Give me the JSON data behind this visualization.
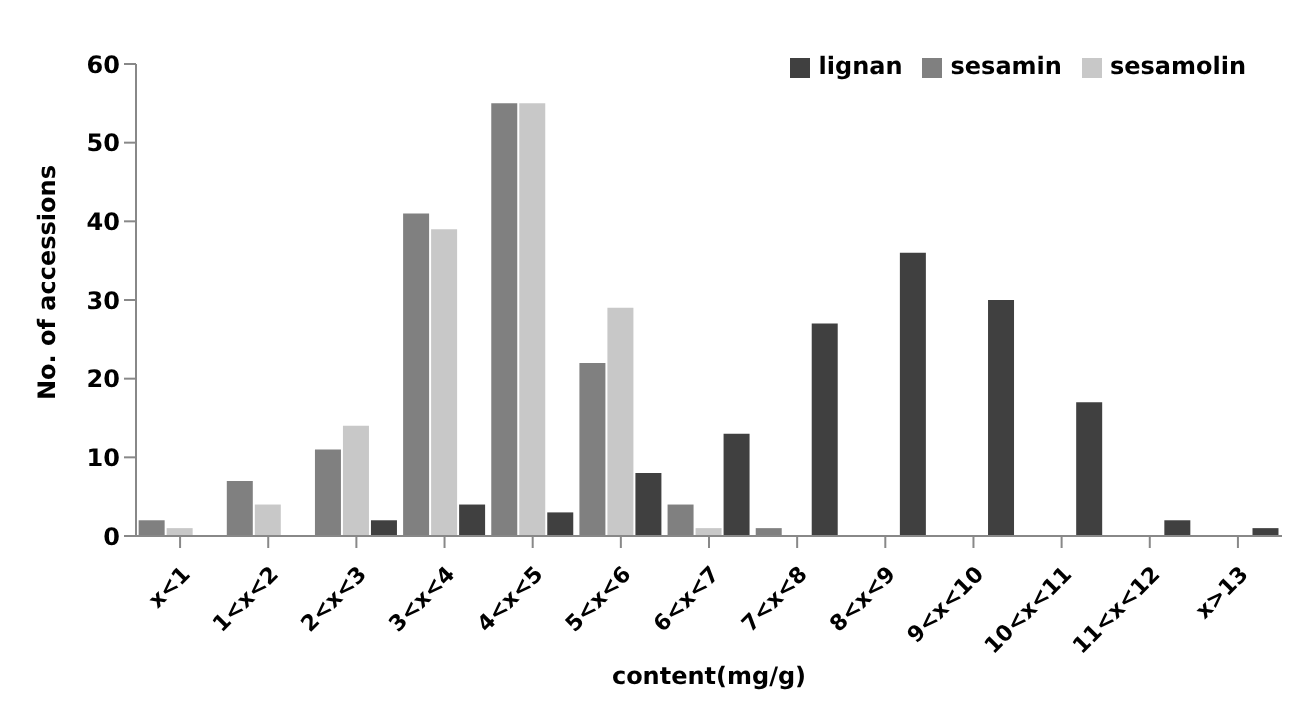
{
  "chart_data": {
    "type": "bar",
    "xlabel": "content(mg/g)",
    "ylabel": "No. of accessions",
    "categories": [
      "x<1",
      "1<x<2",
      "2<x<3",
      "3<x<4",
      "4<x<5",
      "5<x<6",
      "6<x<7",
      "7<x<8",
      "8<x<9",
      "9<x<10",
      "10<x<11",
      "11<x<12",
      "x>13"
    ],
    "series": [
      {
        "name": "sesamin",
        "color": "#808080",
        "values": [
          2,
          7,
          11,
          41,
          55,
          22,
          4,
          1,
          0,
          0,
          0,
          0,
          0
        ]
      },
      {
        "name": "sesamolin",
        "color": "#c8c8c8",
        "values": [
          1,
          4,
          14,
          39,
          55,
          29,
          1,
          0,
          0,
          0,
          0,
          0,
          0
        ]
      },
      {
        "name": "lignan",
        "color": "#404040",
        "values": [
          0,
          0,
          2,
          4,
          3,
          8,
          13,
          27,
          36,
          30,
          17,
          2,
          1
        ]
      }
    ],
    "ylim": [
      0,
      60
    ],
    "yticks": [
      0,
      10,
      20,
      30,
      40,
      50,
      60
    ],
    "grid": false,
    "legend": "top right"
  }
}
